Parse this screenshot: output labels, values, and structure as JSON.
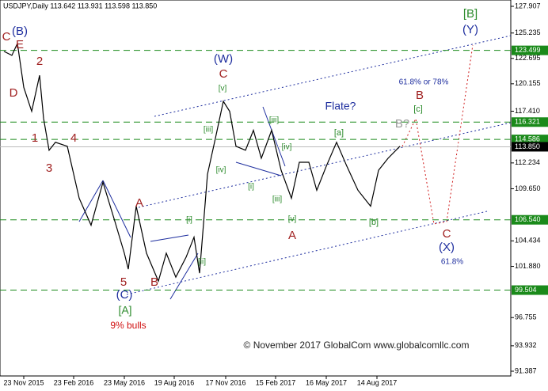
{
  "chart_data": {
    "type": "line",
    "title": "USDJPY,Daily  113.642 113.931 113.598 113.850",
    "x": [
      5,
      15,
      22,
      30,
      40,
      50,
      55,
      62,
      70,
      85,
      100,
      115,
      130,
      145,
      157,
      162,
      172,
      185,
      200,
      210,
      222,
      235,
      245,
      252,
      262,
      272,
      282,
      290,
      298,
      310,
      320,
      330,
      343,
      355,
      368,
      378,
      390,
      400,
      412,
      425,
      438,
      452,
      468,
      478,
      490,
      505
    ],
    "series": [
      {
        "color": "#000000",
        "values": [
          123.4,
          123.0,
          124.2,
          119.8,
          117.4,
          121.0,
          116.7,
          113.5,
          114.3,
          113.9,
          108.7,
          106.0,
          110.3,
          106.4,
          103.2,
          101.6,
          107.9,
          103.2,
          100.4,
          103.2,
          100.8,
          102.8,
          104.8,
          101.2,
          111.1,
          114.7,
          118.4,
          117.4,
          113.9,
          113.5,
          115.5,
          112.7,
          115.5,
          111.5,
          108.7,
          112.3,
          112.3,
          109.5,
          111.9,
          114.3,
          111.9,
          109.5,
          107.9,
          111.5,
          112.7,
          113.9
        ]
      }
    ],
    "xlim": [
      0,
      645
    ],
    "xticks": [
      {
        "value": 30,
        "label": "23 Nov 2015"
      },
      {
        "value": 93,
        "label": "23 Feb 2016"
      },
      {
        "value": 157,
        "label": "23 May 2016"
      },
      {
        "value": 220,
        "label": "19 Aug 2016"
      },
      {
        "value": 285,
        "label": "17 Nov 2016"
      },
      {
        "value": 348,
        "label": "15 Feb 2017"
      },
      {
        "value": 412,
        "label": "16 May 2017"
      },
      {
        "value": 476,
        "label": "14 Aug 2017"
      }
    ],
    "ylim": [
      91.387,
      127.907
    ],
    "yticks": [
      127.907,
      125.235,
      122.695,
      120.155,
      {
        "value": 117.41,
        "label": "117.410"
      },
      112.234,
      {
        "value": 109.65,
        "label": "109.650"
      },
      104.434,
      {
        "value": 101.88,
        "label": "101.880"
      },
      96.755,
      93.932,
      91.387
    ],
    "levels": [
      123.499,
      116.321,
      114.586,
      {
        "value": 106.54,
        "label": "106.540"
      },
      99.504
    ],
    "level_color": "#1a8a1a",
    "last": {
      "value": 113.85,
      "label": "113.850"
    },
    "annotations": [
      {
        "text": "C",
        "color": "#a02020"
      },
      {
        "text": "E",
        "color": "#a02020"
      },
      {
        "text": "(B)",
        "color": "#1f2f9f"
      },
      {
        "text": "D",
        "color": "#a02020"
      },
      {
        "text": "2",
        "color": "#a02020"
      },
      {
        "text": "1",
        "color": "#a02020"
      },
      {
        "text": "4",
        "color": "#a02020"
      },
      {
        "text": "3",
        "color": "#a02020"
      },
      {
        "text": "A",
        "color": "#a02020"
      },
      {
        "text": "5",
        "color": "#a02020"
      },
      {
        "text": "B",
        "color": "#a02020"
      },
      {
        "text": "(C)",
        "color": "#1f2f9f"
      },
      {
        "text": "[A]",
        "color": "#2a8a2a"
      },
      {
        "text": "9% bulls",
        "color": "#d01010"
      },
      {
        "text": "(W)",
        "color": "#1f2f9f"
      },
      {
        "text": "C",
        "color": "#a02020"
      },
      {
        "text": "[v]",
        "color": "#2a8a2a"
      },
      {
        "text": "[iii]",
        "color": "#2a8a2a"
      },
      {
        "text": "[iv]",
        "color": "#2a8a2a"
      },
      {
        "text": "[i]",
        "color": "#2a8a2a"
      },
      {
        "text": "[ii]",
        "color": "#2a8a2a"
      },
      {
        "text": "[iii]",
        "color": "#2a8a2a"
      },
      {
        "text": "[iv]",
        "color": "#2a8a2a"
      },
      {
        "text": "[i]",
        "color": "#2a8a2a"
      },
      {
        "text": "[iii]",
        "color": "#2a8a2a"
      },
      {
        "text": "[v]",
        "color": "#2a8a2a"
      },
      {
        "text": "A",
        "color": "#a02020"
      },
      {
        "text": "[a]",
        "color": "#2a8a2a"
      },
      {
        "text": "[b]",
        "color": "#2a8a2a"
      },
      {
        "text": "Flate?",
        "color": "#1f2f9f"
      },
      {
        "text": "B?",
        "color": "#999999"
      },
      {
        "text": "B",
        "color": "#a02020"
      },
      {
        "text": "[c]",
        "color": "#2a8a2a"
      },
      {
        "text": "61.8% or 78%",
        "color": "#1f2f9f"
      },
      {
        "text": "C",
        "color": "#a02020"
      },
      {
        "text": "(X)",
        "color": "#1f2f9f"
      },
      {
        "text": "61.8%",
        "color": "#1f2f9f"
      },
      {
        "text": "[B]",
        "color": "#2a8a2a"
      },
      {
        "text": "(Y)",
        "color": "#1f2f9f"
      },
      {
        "text": "© November 2017 GlobalCom www.globalcomllc.com",
        "color": "#222222"
      }
    ]
  }
}
